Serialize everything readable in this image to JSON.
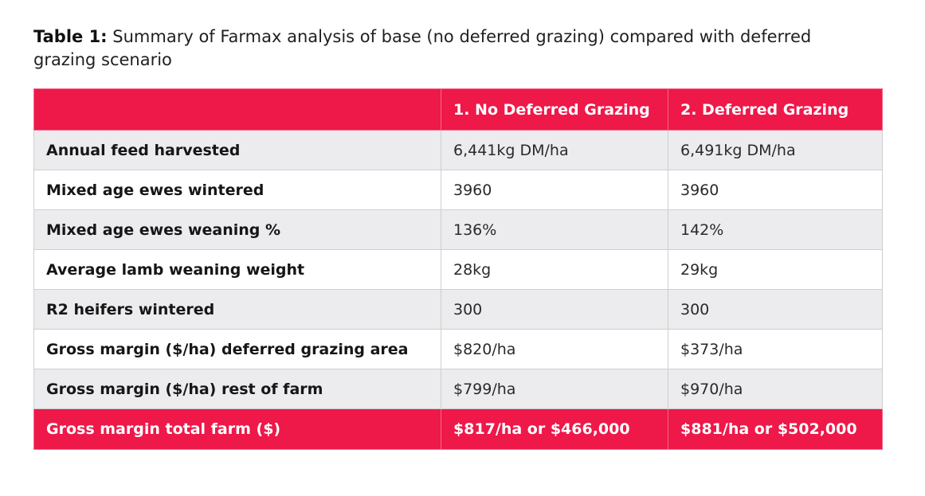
{
  "caption": {
    "lead": "Table 1:",
    "text": "Summary of Farmax analysis of base (no deferred grazing) compared with deferred grazing scenario"
  },
  "table": {
    "headers": [
      "",
      "1. No Deferred Grazing",
      "2. Deferred Grazing"
    ],
    "rows": [
      [
        "Annual feed harvested",
        "6,441kg DM/ha",
        "6,491kg DM/ha"
      ],
      [
        "Mixed age ewes wintered",
        "3960",
        "3960"
      ],
      [
        "Mixed age ewes weaning %",
        "136%",
        "142%"
      ],
      [
        "Average lamb weaning weight",
        "28kg",
        "29kg"
      ],
      [
        "R2 heifers wintered",
        "300",
        "300"
      ],
      [
        "Gross margin ($/ha) deferred grazing area",
        "$820/ha",
        "$373/ha"
      ],
      [
        "Gross margin ($/ha) rest of farm",
        "$799/ha",
        "$970/ha"
      ]
    ],
    "footer": [
      "Gross margin total farm ($)",
      "$817/ha or $466,000",
      "$881/ha or $502,000"
    ]
  },
  "colors": {
    "accent": "#ee1849",
    "row_shade": "#ecebed"
  }
}
